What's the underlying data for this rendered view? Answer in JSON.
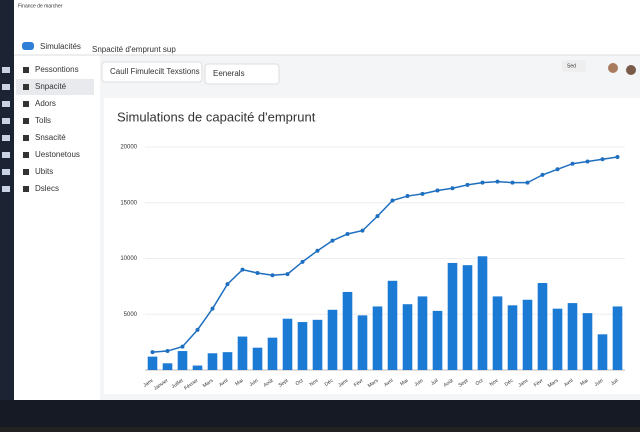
{
  "app": {
    "window_title": "Finance de marcher",
    "brand": "Simulacités",
    "breadcrumb": "Snpacité d'emprunt sup",
    "button": "Sed"
  },
  "sidebar": [
    "Pessontions",
    "Snpacité",
    "Adors",
    "Tolls",
    "Snsacité",
    "Uestonetous",
    "Ubits",
    "Dslecs"
  ],
  "toolbar": [
    "Caull Fimulecilt Texstions",
    "Eenerals"
  ],
  "chart_data": {
    "type": "bar",
    "title": "Simulations de capacité d'emprunt",
    "categories": [
      "Janv",
      "Janvier",
      "Juillet",
      "Février",
      "Mars",
      "Avril",
      "Mai",
      "Juin",
      "Août",
      "Sept",
      "Oct",
      "Nov",
      "Déc",
      "Janv",
      "Févr",
      "Mars",
      "Avril",
      "Mai",
      "Juin",
      "Juil",
      "Août",
      "Sept",
      "Oct",
      "Nov",
      "Déc",
      "Janv",
      "Févr",
      "Mars",
      "Avril",
      "Mai",
      "Juin",
      "Juil"
    ],
    "series": [
      {
        "kind": "bar",
        "color": "#1a7ad4",
        "values": [
          1200,
          600,
          1700,
          400,
          1500,
          1600,
          3000,
          2000,
          2900,
          4600,
          4300,
          4500,
          5400,
          7000,
          4900,
          5700,
          8000,
          5900,
          6600,
          5300,
          9600,
          9400,
          10200,
          6600,
          5800,
          6300,
          7800,
          5500,
          6000,
          5100,
          3200,
          5700
        ]
      },
      {
        "kind": "line",
        "color": "#1f6fc0",
        "values": [
          1600,
          1700,
          2100,
          3600,
          5500,
          7700,
          9000,
          8700,
          8500,
          8600,
          9700,
          10700,
          11600,
          12200,
          12500,
          13800,
          15200,
          15600,
          15800,
          16100,
          16300,
          16600,
          16800,
          16900,
          16800,
          16800,
          17500,
          18000,
          18500,
          18700,
          18900,
          19100
        ]
      }
    ],
    "ylim": [
      0,
      20000
    ],
    "yticks": [
      5000,
      10000,
      15000,
      20000
    ],
    "grid": true
  }
}
